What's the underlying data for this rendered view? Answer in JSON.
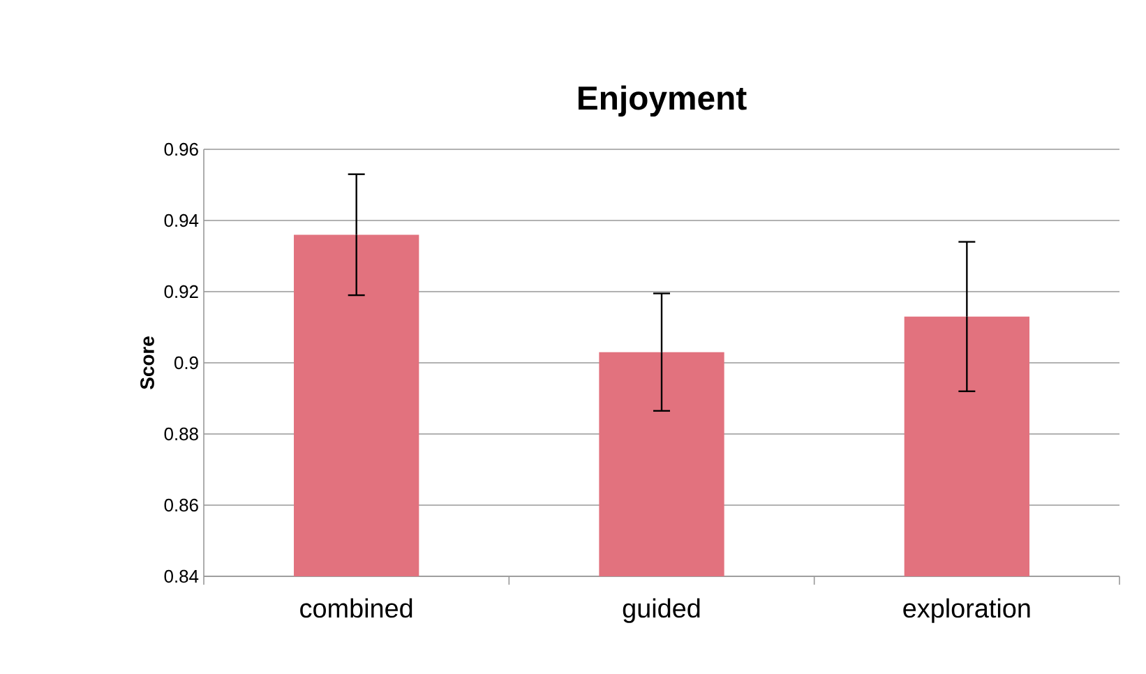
{
  "chart_data": {
    "type": "bar",
    "title": "Enjoyment",
    "ylabel": "Score",
    "categories": [
      "combined",
      "guided",
      "exploration"
    ],
    "values": [
      0.936,
      0.903,
      0.913
    ],
    "errors": [
      0.017,
      0.0165,
      0.021
    ],
    "color": "#e2727e",
    "ylim": [
      0.84,
      0.96
    ],
    "yticks": [
      0.84,
      0.86,
      0.88,
      0.9,
      0.92,
      0.94,
      0.96
    ],
    "grid": "y"
  }
}
